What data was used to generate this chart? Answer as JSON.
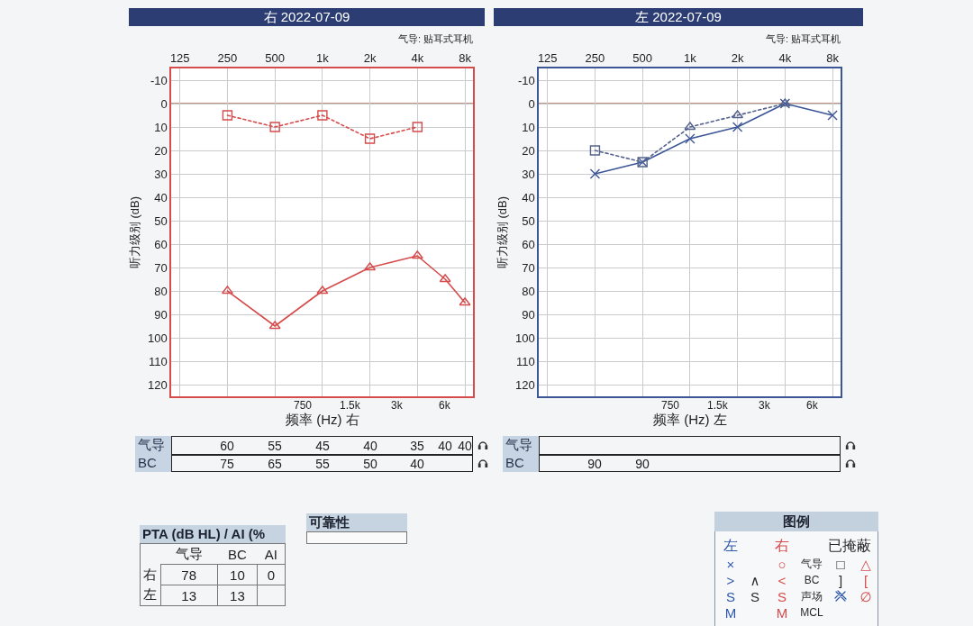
{
  "chart_data": [
    {
      "type": "line",
      "title": "右 2022-07-09",
      "subtitle": "气导: 贴耳式耳机",
      "xlabel": "频率 (Hz) 右",
      "ylabel": "听力级别 (dB)",
      "log": "x",
      "xlim": [
        110,
        9000
      ],
      "xticks": [
        125,
        250,
        500,
        {
          "value": 1000,
          "label": "1k"
        },
        {
          "value": 2000,
          "label": "2k"
        },
        {
          "value": 4000,
          "label": "4k"
        },
        {
          "value": 8000,
          "label": "8k"
        }
      ],
      "ylim": [
        125,
        -15
      ],
      "yticks": [
        -10,
        0,
        10,
        20,
        30,
        40,
        50,
        60,
        70,
        80,
        90,
        100,
        110,
        120
      ],
      "grid": true,
      "ref_lines": [
        {
          "axis": "y",
          "value": 0,
          "color": "#a8705f"
        }
      ],
      "annotations": [
        "750",
        "1.5k",
        "3k",
        "6k"
      ],
      "series": [
        {
          "color": "#d64b4b",
          "x": [
            250,
            500,
            1000,
            2000,
            4000,
            6000,
            8000
          ],
          "values": [
            80,
            95,
            80,
            70,
            65,
            75,
            85
          ],
          "marker": "triangle",
          "line_style": "solid"
        },
        {
          "color": "#d64b4b",
          "x": [
            250,
            500,
            1000,
            2000,
            4000
          ],
          "values": [
            5,
            10,
            5,
            15,
            10
          ],
          "marker": "square",
          "line_style": "dotted"
        }
      ]
    },
    {
      "type": "line",
      "title": "左 2022-07-09",
      "subtitle": "气导: 贴耳式耳机",
      "xlabel": "频率 (Hz) 左",
      "ylabel": "听力级别 (dB)",
      "log": "x",
      "xlim": [
        110,
        9000
      ],
      "xticks": [
        125,
        250,
        500,
        {
          "value": 1000,
          "label": "1k"
        },
        {
          "value": 2000,
          "label": "2k"
        },
        {
          "value": 4000,
          "label": "4k"
        },
        {
          "value": 8000,
          "label": "8k"
        }
      ],
      "ylim": [
        125,
        -15
      ],
      "yticks": [
        -10,
        0,
        10,
        20,
        30,
        40,
        50,
        60,
        70,
        80,
        90,
        100,
        110,
        120
      ],
      "grid": true,
      "ref_lines": [
        {
          "axis": "y",
          "value": 0,
          "color": "#a8705f"
        }
      ],
      "annotations": [
        "750",
        "1.5k",
        "3k",
        "6k"
      ],
      "series": [
        {
          "color": "#3b5597",
          "x": [
            250,
            500,
            1000,
            2000,
            4000,
            8000
          ],
          "values": [
            30,
            25,
            15,
            10,
            0,
            5
          ],
          "marker": "cross",
          "line_style": "solid"
        },
        {
          "color": "#55638c",
          "x": [
            250,
            500,
            1000,
            2000,
            4000
          ],
          "values": [
            20,
            25,
            10,
            5,
            0
          ],
          "marker": [
            "square",
            "square",
            "triangle",
            "triangle",
            "triangle"
          ],
          "line_style": "dotted"
        }
      ]
    },
    {
      "type": "other",
      "annotations": [
        "气导",
        "BC",
        "60",
        "55",
        "45",
        "40",
        "35",
        "40",
        "40",
        "75",
        "65",
        "55",
        "50",
        "40"
      ]
    },
    {
      "type": "other",
      "annotations": [
        "气导",
        "BC",
        "90",
        "90"
      ]
    },
    {
      "type": "other",
      "title": "PTA (dB HL) / AI (%",
      "categories": [
        "气导",
        "BC",
        "AI"
      ],
      "data_labels": true,
      "series": [
        {
          "name": "右",
          "values": [
            78,
            10,
            0
          ]
        },
        {
          "name": "左",
          "values": [
            13,
            13,
            null
          ]
        }
      ]
    },
    {
      "type": "other",
      "title": "可靠性"
    },
    {
      "type": "other",
      "title": "图例",
      "annotations": [
        "左",
        "右",
        "已掩蔽",
        "×",
        "○",
        "气导",
        "□",
        "△",
        ">",
        "∧",
        "<",
        "BC",
        "]",
        "[",
        "S",
        "S",
        "S",
        "声场",
        "∅",
        "M",
        "M",
        "MCL"
      ]
    }
  ]
}
